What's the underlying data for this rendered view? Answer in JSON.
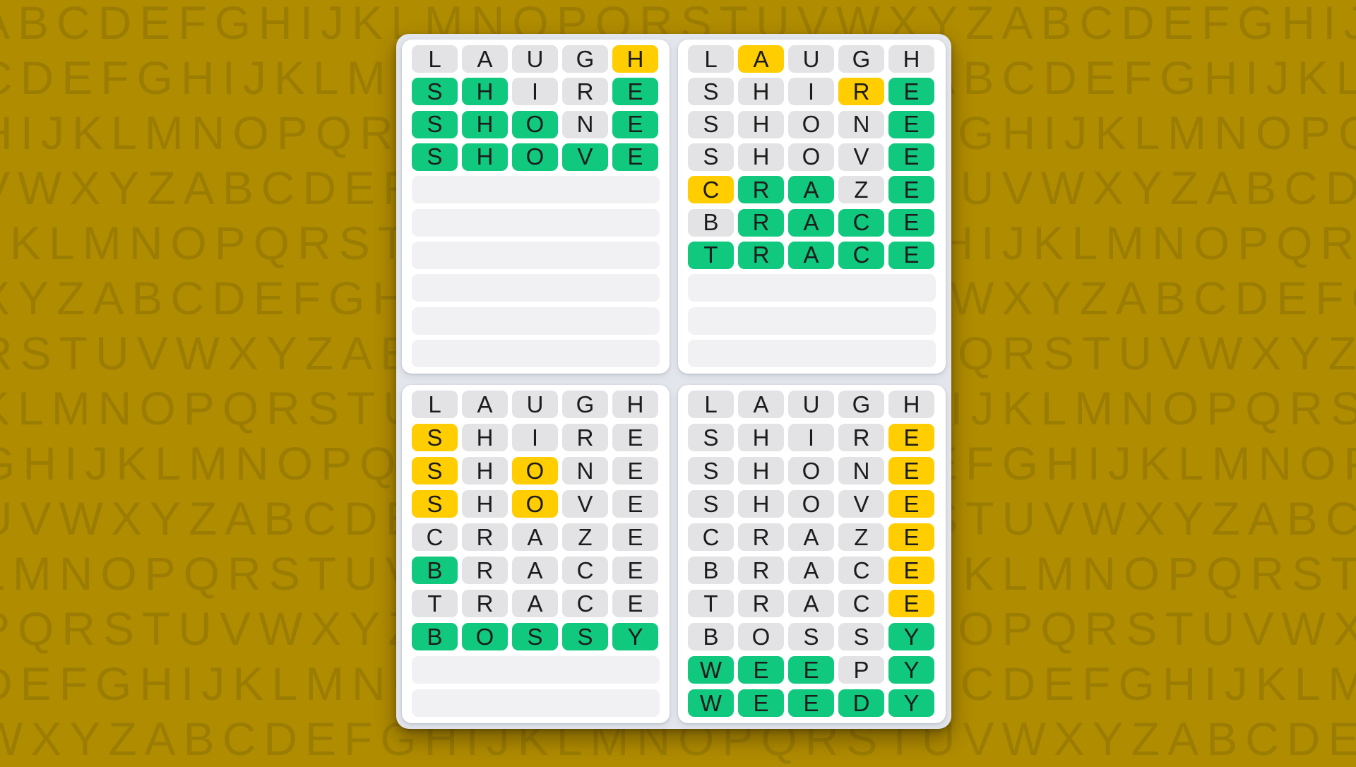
{
  "format": {
    "result_legend": {
      "a": "absent-gray",
      "p": "present-yellow",
      "c": "correct-green"
    }
  },
  "colors": {
    "page_background": "#B08C00",
    "background_letters": "#9C7D03",
    "cluster_backdrop": "#E3E6EC",
    "panel": "#FFFFFF",
    "empty_row": "#F1F1F4",
    "absent": "#E3E3E6",
    "present": "#FFCD00",
    "correct": "#10C97F",
    "cell_letter": "#1C1C1C"
  },
  "background": {
    "rows": [
      "ABCDEFGHIJKLMNOPQRSTUVWXYZABCDEFGHIJ",
      "CDEFGHIJKLMNOPQRSTUVWXYZABCDEFGHIJKL",
      "HIJKLMNOPQRSTUVWXYZABCDEFGHIJKLMNOPQ",
      "VWXYZABCDEFGHIJKLMNOPQRSTUVWXYZABCDE",
      "JKLMNOPQRSTUVWXYZABCDEFGHIJKLMNOPQRS",
      "XYZABCDEFGHIJKLMNOPQRSTUVWXYZABCDEFG",
      "RSTUVWXYZABCDEFGHIJKLMNOPQRSTUVWXYZA",
      "KLMNOPQRSTUVWXYZABCDEFGHIJKLMNOPQRST",
      "GHIJKLMNOPQRSTUVWXYZABCDEFGHIJKLMNOP",
      "UVWXYZABCDEFGHIJKLMNOPQRSTUVWXYZABCD",
      "LMNOPQRSTUVWXYZABCDEFGHIJKLMNOPQRSTU",
      "PQRSTUVWXYZABCDEFGHIJKLMNOPQRSTUVWXY",
      "DEFGHIJKLMNOPQRSTUVWXYZABCDEFGHIJKLM",
      "WXYZABCDEFGHIJKLMNOPQRSTUVWXYZABCDEF"
    ]
  },
  "boards": [
    {
      "position": "top-left",
      "total_rows": 10,
      "guesses": [
        {
          "word": "LAUGH",
          "result": "aaaap"
        },
        {
          "word": "SHIRE",
          "result": "ccaac"
        },
        {
          "word": "SHONE",
          "result": "cccac"
        },
        {
          "word": "SHOVE",
          "result": "ccccc"
        }
      ]
    },
    {
      "position": "top-right",
      "total_rows": 10,
      "guesses": [
        {
          "word": "LAUGH",
          "result": "apaaa"
        },
        {
          "word": "SHIRE",
          "result": "aaapc"
        },
        {
          "word": "SHONE",
          "result": "aaaac"
        },
        {
          "word": "SHOVE",
          "result": "aaaac"
        },
        {
          "word": "CRAZE",
          "result": "pccac"
        },
        {
          "word": "BRACE",
          "result": "acccc"
        },
        {
          "word": "TRACE",
          "result": "ccccc"
        }
      ]
    },
    {
      "position": "bottom-left",
      "total_rows": 10,
      "guesses": [
        {
          "word": "LAUGH",
          "result": "aaaaa"
        },
        {
          "word": "SHIRE",
          "result": "paaaa"
        },
        {
          "word": "SHONE",
          "result": "papaa"
        },
        {
          "word": "SHOVE",
          "result": "papaa"
        },
        {
          "word": "CRAZE",
          "result": "aaaaa"
        },
        {
          "word": "BRACE",
          "result": "caaaa"
        },
        {
          "word": "TRACE",
          "result": "aaaaa"
        },
        {
          "word": "BOSSY",
          "result": "ccccc"
        }
      ]
    },
    {
      "position": "bottom-right",
      "total_rows": 10,
      "guesses": [
        {
          "word": "LAUGH",
          "result": "aaaaa"
        },
        {
          "word": "SHIRE",
          "result": "aaaap"
        },
        {
          "word": "SHONE",
          "result": "aaaap"
        },
        {
          "word": "SHOVE",
          "result": "aaaap"
        },
        {
          "word": "CRAZE",
          "result": "aaaap"
        },
        {
          "word": "BRACE",
          "result": "aaaap"
        },
        {
          "word": "TRACE",
          "result": "aaaap"
        },
        {
          "word": "BOSSY",
          "result": "aaaac"
        },
        {
          "word": "WEEPY",
          "result": "cccac"
        },
        {
          "word": "WEEDY",
          "result": "ccccc"
        }
      ]
    }
  ]
}
